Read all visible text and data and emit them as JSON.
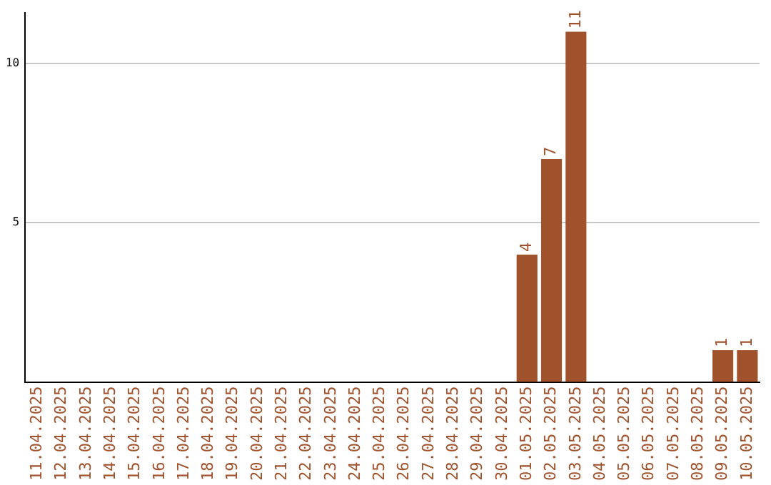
{
  "chart_data": {
    "type": "bar",
    "categories": [
      "11.04.2025",
      "12.04.2025",
      "13.04.2025",
      "14.04.2025",
      "15.04.2025",
      "16.04.2025",
      "17.04.2025",
      "18.04.2025",
      "19.04.2025",
      "20.04.2025",
      "21.04.2025",
      "22.04.2025",
      "23.04.2025",
      "24.04.2025",
      "25.04.2025",
      "26.04.2025",
      "27.04.2025",
      "28.04.2025",
      "29.04.2025",
      "30.04.2025",
      "01.05.2025",
      "02.05.2025",
      "03.05.2025",
      "04.05.2025",
      "05.05.2025",
      "06.05.2025",
      "07.05.2025",
      "08.05.2025",
      "09.05.2025",
      "10.05.2025"
    ],
    "values": [
      0,
      0,
      0,
      0,
      0,
      0,
      0,
      0,
      0,
      0,
      0,
      0,
      0,
      0,
      0,
      0,
      0,
      0,
      0,
      0,
      4,
      7,
      11,
      0,
      0,
      0,
      0,
      0,
      1,
      1
    ],
    "value_labels": [
      null,
      null,
      null,
      null,
      null,
      null,
      null,
      null,
      null,
      null,
      null,
      null,
      null,
      null,
      null,
      null,
      null,
      null,
      null,
      null,
      "4",
      "7",
      "11",
      null,
      null,
      null,
      null,
      null,
      "1",
      "1"
    ],
    "color": "#a0522d",
    "ylim": [
      0,
      11.6
    ],
    "yticks": [
      5,
      10
    ],
    "grid": "y",
    "legend": false
  }
}
